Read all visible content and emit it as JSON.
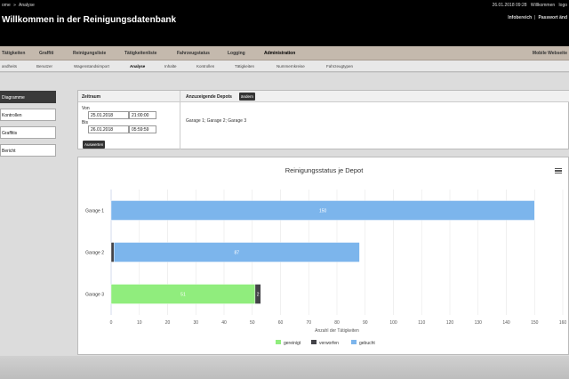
{
  "breadcrumb": {
    "part1": "ome",
    "sep": "»",
    "part2": "Analyse"
  },
  "header": {
    "title": "Willkommen in der Reinigungsdatenbank",
    "datetime": "26.01.2018 09:28",
    "greeting": "Willkommen",
    "user": "logo",
    "info_link": "Infobereich",
    "separator": "|",
    "password_link": "Passwort änd"
  },
  "mainnav": {
    "items": [
      "Tätigkeiten",
      "Graffiti",
      "Reinigungsliste",
      "Tätigkeitenliste",
      "Fahrzeugstatus",
      "Logging",
      "Administration"
    ],
    "right": "Mobile Webseite"
  },
  "subnav": {
    "items": [
      "andheits",
      "Benutzer",
      "Wagenstandsimport",
      "Analyse",
      "Inhalte",
      "Kontrollen",
      "Tätigkeiten",
      "Nummernkreise",
      "Fahrzeugtypen"
    ]
  },
  "sidebar": {
    "items": [
      {
        "label": "Diagramme"
      },
      {
        "label": "Kontrollen"
      },
      {
        "label": "Graffitis"
      },
      {
        "label": "Bericht"
      }
    ]
  },
  "filter": {
    "zeitraum_label": "Zeitraum",
    "von_label": "Von",
    "von_date": "25.01.2018",
    "von_time": "21:00:00",
    "bis_label": "Bis",
    "bis_date": "26.01.2018",
    "bis_time": "05:59:59",
    "submit_label": "Auswerten",
    "depots_label": "Anzuzeigende Depots",
    "depots_button": "ändern",
    "depots_value": "Garage 1; Garage 2; Garage 3"
  },
  "colors": {
    "gereinigt": "#90ed7d",
    "verworfen": "#434348",
    "gebucht": "#7cb5ec"
  },
  "chart_data": {
    "type": "bar",
    "orientation": "horizontal",
    "stacked": true,
    "title": "Reinigungsstatus je Depot",
    "xlabel": "Anzahl der Tätigkeiten",
    "ylabel": "",
    "categories": [
      "Garage 1",
      "Garage 2",
      "Garage 3"
    ],
    "xlim": [
      0,
      160
    ],
    "xticks": [
      0,
      10,
      20,
      30,
      40,
      50,
      60,
      70,
      80,
      90,
      100,
      110,
      120,
      130,
      140,
      150,
      160
    ],
    "grid": true,
    "legend_position": "bottom",
    "series": [
      {
        "name": "gereinigt",
        "values": [
          0,
          0,
          51
        ]
      },
      {
        "name": "verworfen",
        "values": [
          0,
          1,
          2
        ]
      },
      {
        "name": "gebucht",
        "values": [
          150,
          87,
          0
        ]
      }
    ],
    "data_labels": [
      {
        "category": "Garage 1",
        "series": "verworfen",
        "text": "0"
      },
      {
        "category": "Garage 1",
        "series": "gebucht",
        "text": "150"
      },
      {
        "category": "Garage 2",
        "series": "gebucht",
        "text": "87"
      },
      {
        "category": "Garage 3",
        "series": "gereinigt",
        "text": "51"
      },
      {
        "category": "Garage 3",
        "series": "verworfen",
        "text": "2"
      }
    ]
  }
}
